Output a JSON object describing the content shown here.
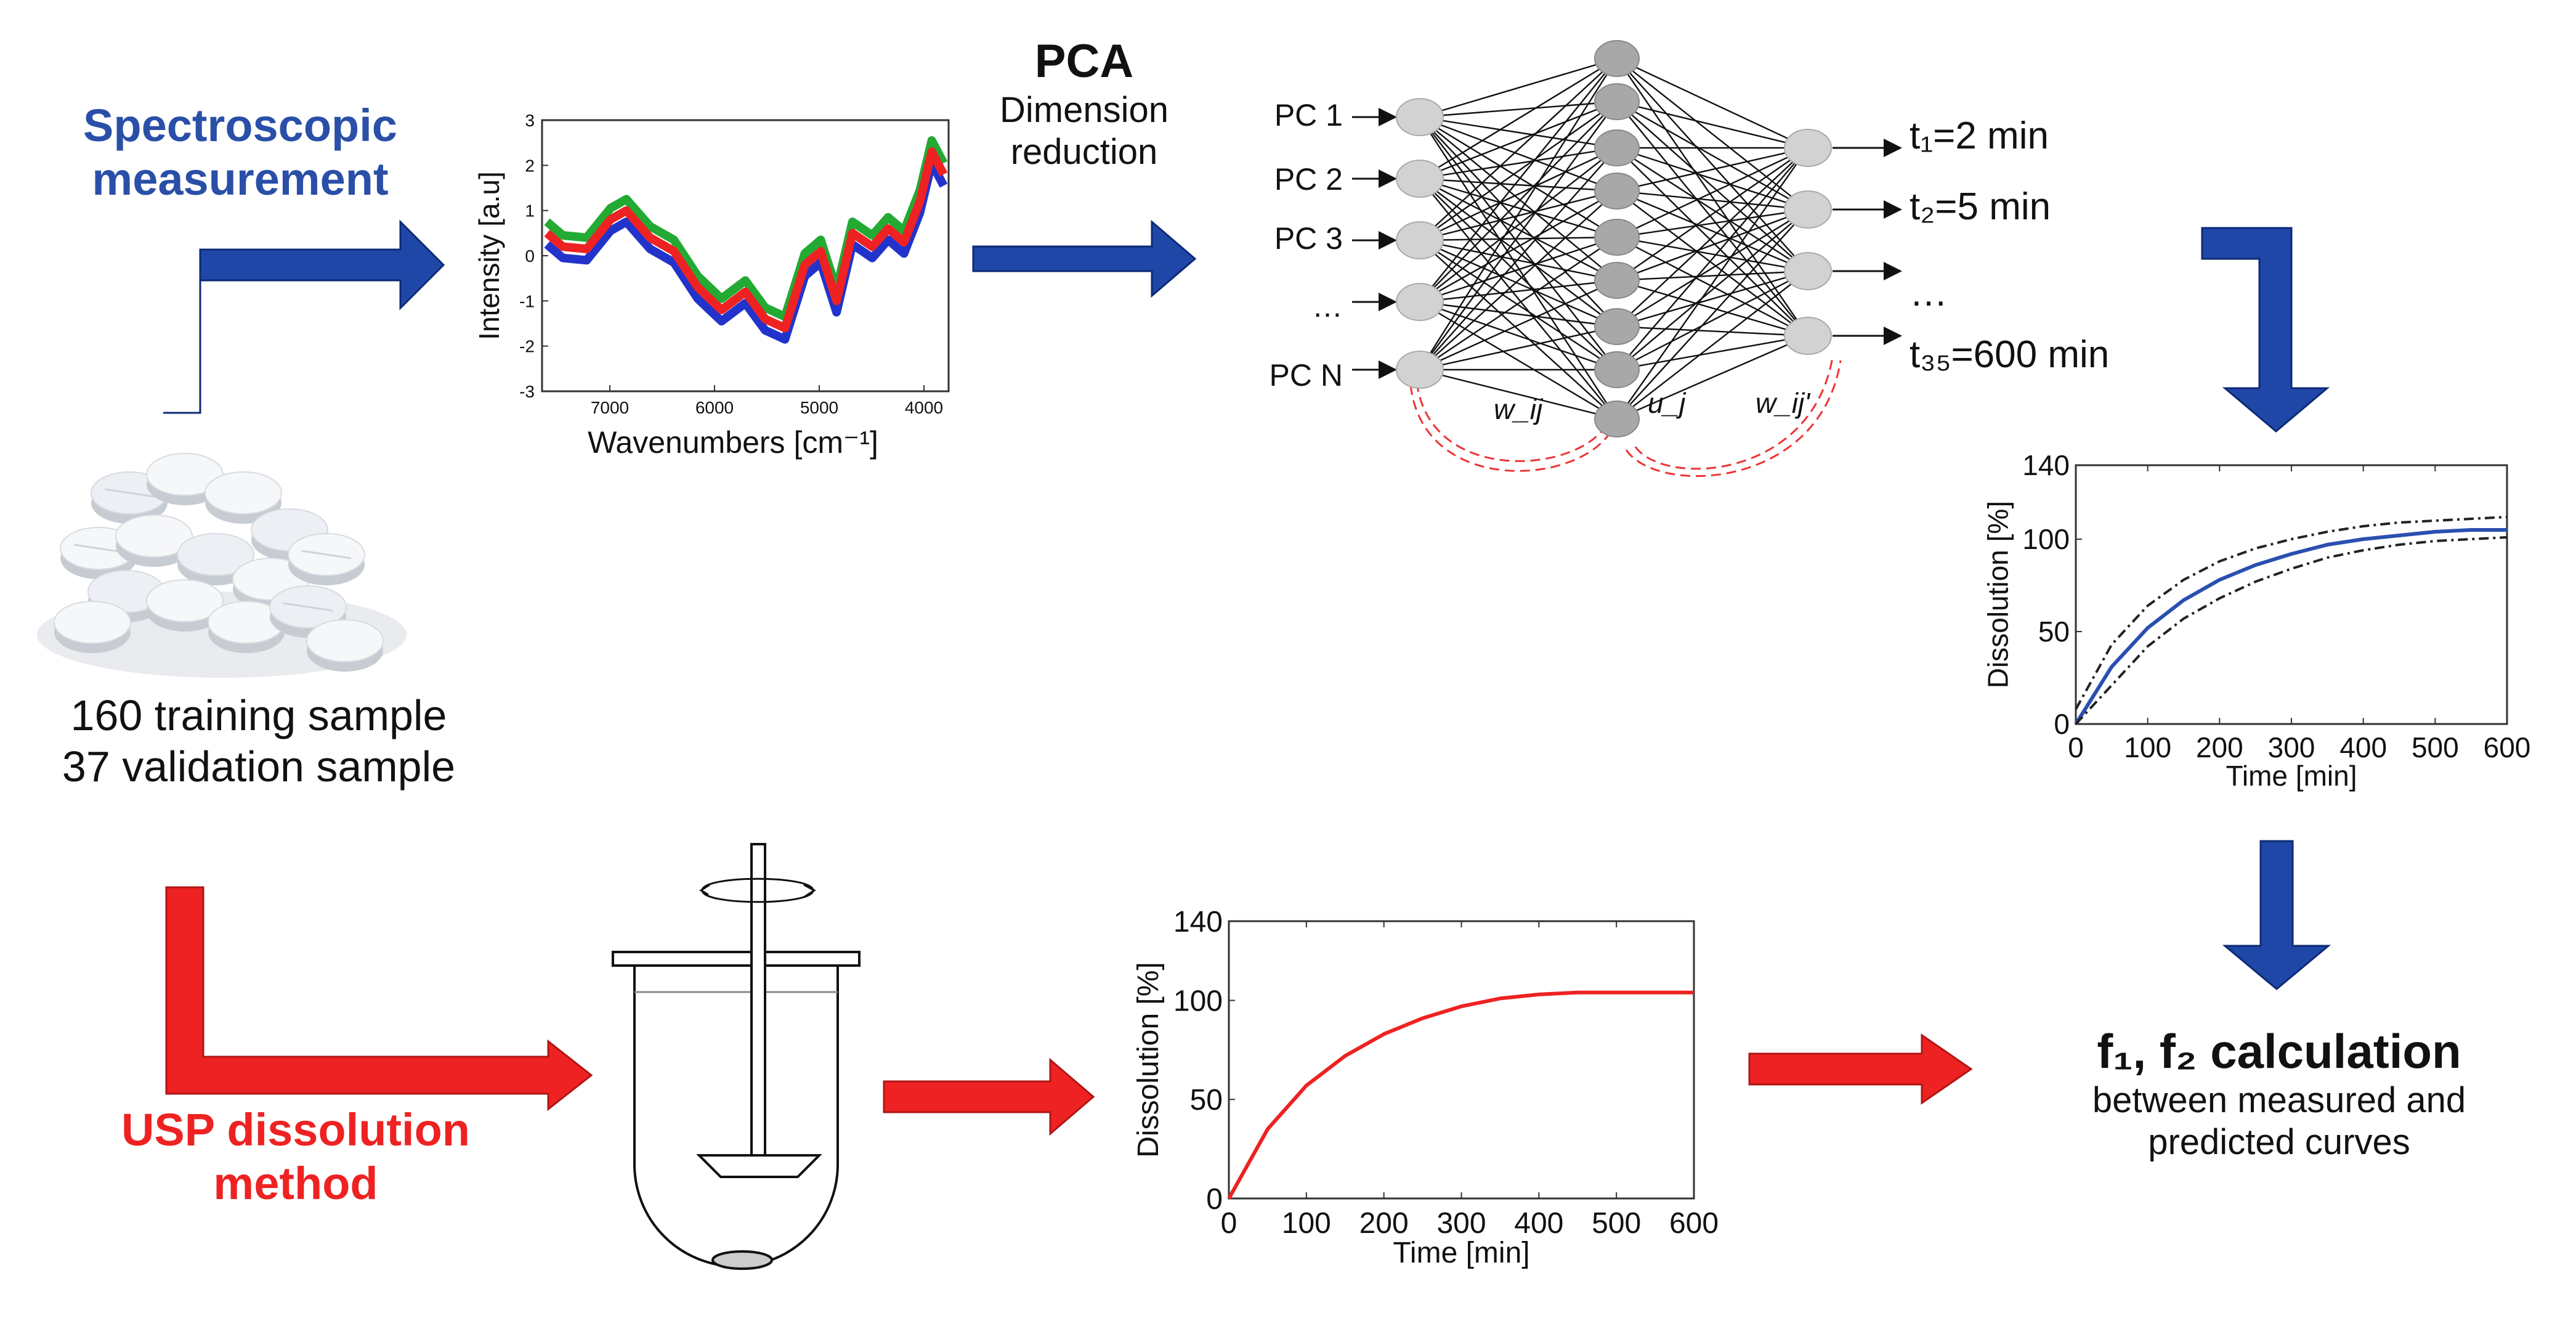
{
  "labels": {
    "spectro_line1": "Spectroscopic",
    "spectro_line2": "measurement",
    "pca_title": "PCA",
    "pca_sub1": "Dimension",
    "pca_sub2": "reduction",
    "training": "160 training sample",
    "validation": "37 validation sample",
    "usp_line1": "USP dissolution",
    "usp_line2": "method",
    "f_title": "f₁, f₂ calculation",
    "f_sub1": "between measured and",
    "f_sub2": "predicted curves"
  },
  "network": {
    "inputs": [
      "PC 1",
      "PC 2",
      "PC 3",
      "…",
      "PC N"
    ],
    "outputs": [
      "t₁=2 min",
      "t₂=5 min",
      "…",
      "t₃₅=600 min"
    ],
    "weights": {
      "w_in": "w_ij",
      "u": "u_j",
      "w_out": "w_ij'"
    }
  },
  "spectrum": {
    "xlabel": "Wavenumbers [cm⁻¹]",
    "ylabel": "Intensity [a.u]",
    "xticks": [
      "7000",
      "6000",
      "5000",
      "4000"
    ],
    "yticks": [
      "3",
      "2",
      "1",
      "0",
      "-1",
      "-2",
      "-3"
    ],
    "series_colors": [
      "#2233cc",
      "#ee2222",
      "#22aa33"
    ]
  },
  "chart_data": [
    {
      "type": "line",
      "title": "",
      "xlabel": "Time [min]",
      "ylabel": "Dissolution [%]",
      "xlim": [
        0,
        600
      ],
      "ylim": [
        0,
        140
      ],
      "xticks": [
        "0",
        "100",
        "200",
        "300",
        "400",
        "500",
        "600"
      ],
      "yticks": [
        "0",
        "50",
        "100",
        "140"
      ],
      "series": [
        {
          "name": "predicted",
          "style": "solid",
          "color": "#2a4fb0",
          "x": [
            0,
            50,
            100,
            150,
            200,
            250,
            300,
            350,
            400,
            450,
            500,
            550,
            600
          ],
          "y": [
            0,
            31,
            52,
            67,
            78,
            86,
            92,
            97,
            100,
            102,
            104,
            105,
            105
          ]
        },
        {
          "name": "upper bound",
          "style": "dashdot",
          "color": "#222222",
          "x": [
            0,
            50,
            100,
            150,
            200,
            250,
            300,
            350,
            400,
            450,
            500,
            550,
            600
          ],
          "y": [
            8,
            43,
            64,
            78,
            88,
            95,
            100,
            104,
            107,
            109,
            110,
            111,
            112
          ]
        },
        {
          "name": "lower bound",
          "style": "dashdot",
          "color": "#222222",
          "x": [
            0,
            50,
            100,
            150,
            200,
            250,
            300,
            350,
            400,
            450,
            500,
            550,
            600
          ],
          "y": [
            0,
            21,
            42,
            57,
            68,
            77,
            84,
            90,
            94,
            97,
            99,
            100,
            101
          ]
        }
      ]
    },
    {
      "type": "line",
      "title": "",
      "xlabel": "Time [min]",
      "ylabel": "Dissolution [%]",
      "xlim": [
        0,
        600
      ],
      "ylim": [
        0,
        140
      ],
      "xticks": [
        "0",
        "100",
        "200",
        "300",
        "400",
        "500",
        "600"
      ],
      "yticks": [
        "0",
        "50",
        "100",
        "140"
      ],
      "series": [
        {
          "name": "measured",
          "style": "solid",
          "color": "#ee2222",
          "x": [
            0,
            50,
            100,
            150,
            200,
            250,
            300,
            350,
            400,
            450,
            500,
            550,
            600
          ],
          "y": [
            0,
            35,
            57,
            72,
            83,
            91,
            97,
            101,
            103,
            104,
            104,
            104,
            104
          ]
        }
      ]
    }
  ]
}
